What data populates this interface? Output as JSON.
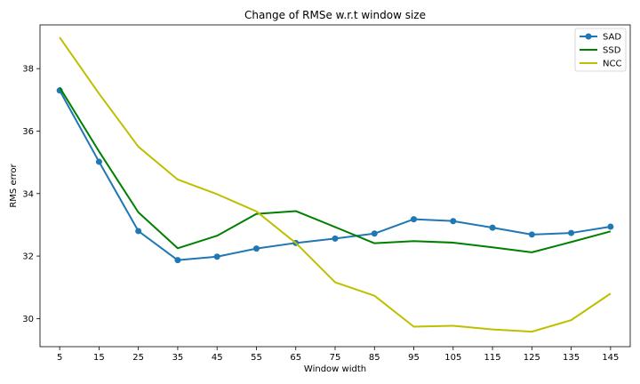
{
  "chart_data": {
    "type": "line",
    "title": "Change of RMSe w.r.t window size",
    "xlabel": "Window width",
    "ylabel": "RMS error",
    "x": [
      5,
      15,
      25,
      35,
      45,
      55,
      65,
      75,
      85,
      95,
      105,
      115,
      125,
      135,
      145
    ],
    "xticks": [
      "5",
      "15",
      "25",
      "35",
      "45",
      "55",
      "65",
      "75",
      "85",
      "95",
      "105",
      "115",
      "125",
      "135",
      "145"
    ],
    "yticks": [
      "30",
      "32",
      "34",
      "36",
      "38"
    ],
    "ylim": [
      29.1,
      39.4
    ],
    "grid": false,
    "legend_position": "top-right",
    "series": [
      {
        "name": "SAD",
        "color": "#1f77b4",
        "marker": "circle",
        "values": [
          37.3,
          35.02,
          32.8,
          31.87,
          31.98,
          32.24,
          32.42,
          32.56,
          32.72,
          33.18,
          33.12,
          32.91,
          32.69,
          32.74,
          32.94
        ]
      },
      {
        "name": "SSD",
        "color": "#008000",
        "marker": "none",
        "values": [
          37.4,
          35.35,
          33.4,
          32.25,
          32.65,
          33.35,
          33.44,
          32.93,
          32.41,
          32.48,
          32.43,
          32.28,
          32.12,
          32.45,
          32.79
        ]
      },
      {
        "name": "NCC",
        "color": "#bfbf00",
        "marker": "none",
        "values": [
          39.0,
          37.2,
          35.5,
          34.45,
          33.98,
          33.43,
          32.42,
          31.16,
          30.73,
          29.74,
          29.77,
          29.65,
          29.58,
          29.95,
          30.8
        ]
      }
    ]
  }
}
